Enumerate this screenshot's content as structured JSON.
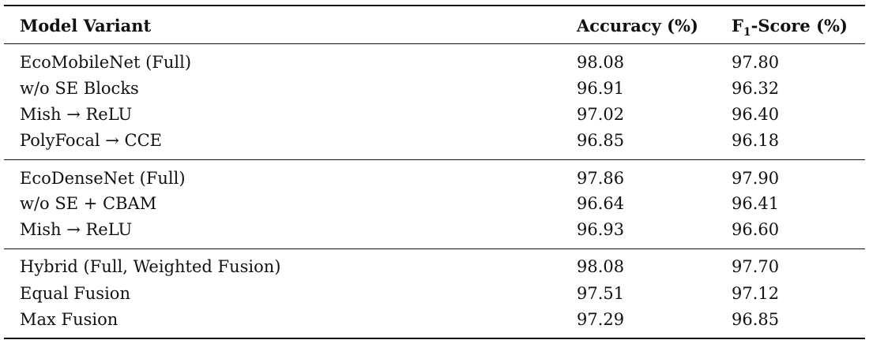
{
  "table": {
    "headers": [
      "Model Variant",
      "Accuracy (%)",
      "F",
      "1",
      "-Score (%)"
    ],
    "groups": [
      [
        [
          "EcoMobileNet (Full)",
          "98.08",
          "97.80"
        ],
        [
          "w/o SE Blocks",
          "96.91",
          "96.32"
        ],
        [
          "Mish → ReLU",
          "97.02",
          "96.40"
        ],
        [
          "PolyFocal → CCE",
          "96.85",
          "96.18"
        ]
      ],
      [
        [
          "EcoDenseNet (Full)",
          "97.86",
          "97.90"
        ],
        [
          "w/o SE + CBAM",
          "96.64",
          "96.41"
        ],
        [
          "Mish → ReLU",
          "96.93",
          "96.60"
        ]
      ],
      [
        [
          "Hybrid (Full, Weighted Fusion)",
          "98.08",
          "97.70"
        ],
        [
          "Equal Fusion",
          "97.51",
          "97.12"
        ],
        [
          "Max Fusion",
          "97.29",
          "96.85"
        ]
      ]
    ]
  }
}
